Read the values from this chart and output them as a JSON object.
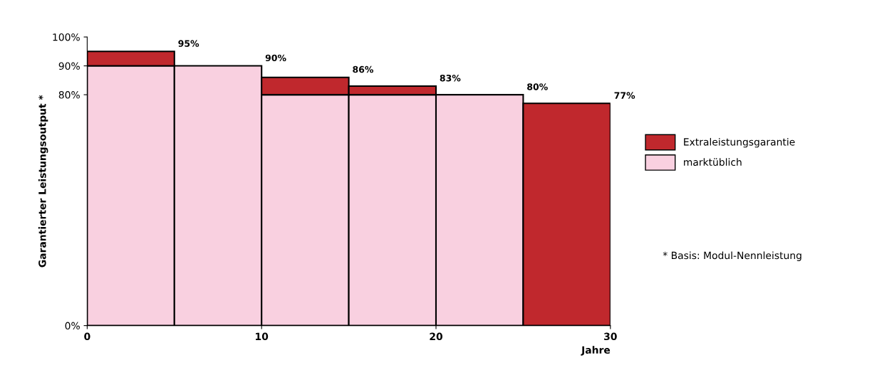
{
  "chart_data": {
    "type": "bar",
    "stacked": true,
    "xlabel": "Jahre",
    "ylabel": "Garantierter Leistungsoutput *",
    "x": [
      2.5,
      7.5,
      12.5,
      17.5,
      22.5,
      27.5
    ],
    "xlim": [
      0,
      30
    ],
    "xticks": [
      0,
      10,
      20,
      30
    ],
    "ylim": [
      0,
      100
    ],
    "yticks": [
      {
        "value": 0,
        "label": "0%"
      },
      {
        "value": 80,
        "label": "80%"
      },
      {
        "value": 90,
        "label": "90%"
      },
      {
        "value": 100,
        "label": "100%"
      }
    ],
    "series": [
      {
        "name": "marktüblich",
        "color": "#f9d0e0",
        "values": [
          90,
          90,
          80,
          80,
          80,
          0
        ]
      },
      {
        "name": "Extraleistungsgarantie",
        "color": "#c0282d",
        "values": [
          5,
          0,
          6,
          3,
          0,
          77
        ]
      }
    ],
    "totals": [
      "95%",
      "90%",
      "86%",
      "83%",
      "80%",
      "77%"
    ],
    "annotations": [
      "* Basis: Modul-Nennleistung"
    ],
    "legend": "right",
    "grid": false
  }
}
